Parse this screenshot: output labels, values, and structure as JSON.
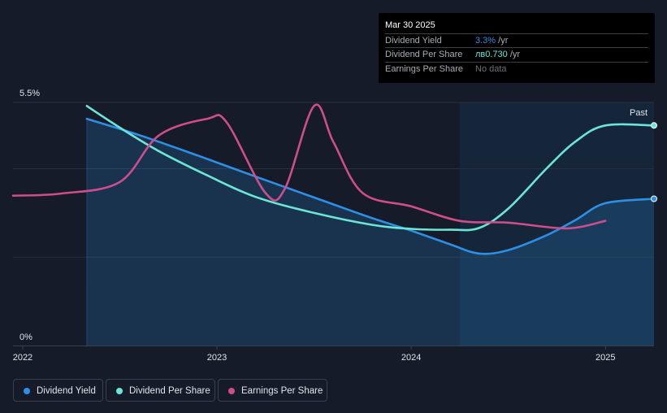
{
  "tooltip": {
    "date": "Mar 30 2025",
    "rows": [
      {
        "label": "Dividend Yield",
        "value": "3.3%",
        "unit": " /yr",
        "color": "#2e8fe6"
      },
      {
        "label": "Dividend Per Share",
        "value": "лв0.730",
        "unit": " /yr",
        "color": "#6be6d6"
      },
      {
        "label": "Earnings Per Share",
        "value": "No data",
        "unit": "",
        "color": "#6b7079"
      }
    ]
  },
  "legend": [
    {
      "label": "Dividend Yield",
      "color": "#2e8fe6"
    },
    {
      "label": "Dividend Per Share",
      "color": "#6be6d6"
    },
    {
      "label": "Earnings Per Share",
      "color": "#cf4d8c"
    }
  ],
  "chart_data": {
    "type": "line",
    "title": "",
    "ylim": [
      0,
      5.5
    ],
    "xlim": [
      2021.95,
      2025.25
    ],
    "y_axis_labels": {
      "top": "5.5%",
      "bottom": "0%"
    },
    "gridlines_y": [
      5.5,
      4.0,
      2.0
    ],
    "x_ticks": [
      2022,
      2023,
      2024,
      2025
    ],
    "x_tick_labels": [
      "2022",
      "2023",
      "2024",
      "2025"
    ],
    "past_label": "Past",
    "forecast_start": 2024.25,
    "series": [
      {
        "name": "Dividend Yield",
        "color": "#2e8fe6",
        "fill": true,
        "points": [
          [
            2022.33,
            5.13
          ],
          [
            2022.6,
            4.76
          ],
          [
            2022.9,
            4.3
          ],
          [
            2023.2,
            3.82
          ],
          [
            2023.5,
            3.35
          ],
          [
            2023.8,
            2.88
          ],
          [
            2024.0,
            2.6
          ],
          [
            2024.2,
            2.29
          ],
          [
            2024.35,
            2.08
          ],
          [
            2024.5,
            2.16
          ],
          [
            2024.7,
            2.5
          ],
          [
            2024.85,
            2.85
          ],
          [
            2025.0,
            3.22
          ],
          [
            2025.25,
            3.32
          ]
        ],
        "end_marker": true
      },
      {
        "name": "Dividend Per Share",
        "color": "#6be6d6",
        "fill": false,
        "points": [
          [
            2022.33,
            5.42
          ],
          [
            2022.5,
            4.93
          ],
          [
            2022.7,
            4.4
          ],
          [
            2022.95,
            3.85
          ],
          [
            2023.2,
            3.36
          ],
          [
            2023.5,
            3.0
          ],
          [
            2023.8,
            2.73
          ],
          [
            2024.0,
            2.64
          ],
          [
            2024.2,
            2.62
          ],
          [
            2024.35,
            2.66
          ],
          [
            2024.5,
            3.1
          ],
          [
            2024.7,
            4.02
          ],
          [
            2024.85,
            4.63
          ],
          [
            2025.0,
            4.98
          ],
          [
            2025.25,
            4.98
          ]
        ],
        "end_marker": true
      },
      {
        "name": "Earnings Per Share",
        "color": "#cf4d8c",
        "fill": false,
        "points": [
          [
            2021.95,
            3.39
          ],
          [
            2022.2,
            3.44
          ],
          [
            2022.5,
            3.7
          ],
          [
            2022.7,
            4.75
          ],
          [
            2022.95,
            5.13
          ],
          [
            2023.05,
            5.05
          ],
          [
            2023.25,
            3.45
          ],
          [
            2023.35,
            3.55
          ],
          [
            2023.5,
            5.42
          ],
          [
            2023.6,
            4.6
          ],
          [
            2023.75,
            3.45
          ],
          [
            2024.0,
            3.15
          ],
          [
            2024.25,
            2.82
          ],
          [
            2024.5,
            2.78
          ],
          [
            2024.8,
            2.65
          ],
          [
            2025.0,
            2.82
          ]
        ],
        "end_marker": false
      }
    ]
  }
}
